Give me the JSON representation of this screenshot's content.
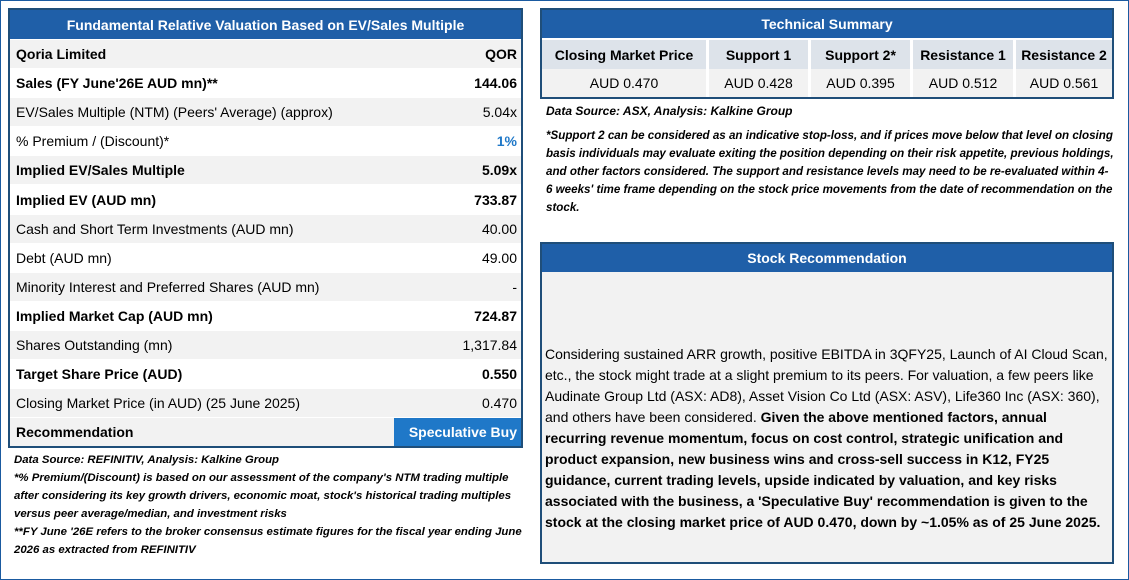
{
  "valuation": {
    "title": "Fundamental Relative Valuation Based on EV/Sales Multiple",
    "rows": [
      {
        "label": "Qoria Limited",
        "value": "QOR"
      },
      {
        "label": "Sales (FY June'26E AUD mn)**",
        "value": "144.06"
      },
      {
        "label": "EV/Sales Multiple (NTM)  (Peers' Average) (approx)",
        "value": "5.04x"
      },
      {
        "label": "% Premium / (Discount)*",
        "value": "1%"
      },
      {
        "label": "Implied EV/Sales Multiple",
        "value": "5.09x"
      },
      {
        "label": "Implied EV (AUD mn)",
        "value": "733.87"
      },
      {
        "label": "Cash and Short Term Investments (AUD mn)",
        "value": "40.00"
      },
      {
        "label": "Debt (AUD mn)",
        "value": "49.00"
      },
      {
        "label": "Minority Interest and Preferred Shares (AUD mn)",
        "value": "-"
      },
      {
        "label": "Implied Market Cap (AUD mn)",
        "value": "724.87"
      },
      {
        "label": "Shares Outstanding (mn)",
        "value": "1,317.84"
      },
      {
        "label": "Target Share Price (AUD)",
        "value": "0.550"
      },
      {
        "label": "Closing Market Price (in AUD) (25 June 2025)",
        "value": "0.470"
      },
      {
        "label": "Recommendation",
        "value": "Speculative Buy"
      }
    ],
    "colors": {
      "header": "#1f5fa8",
      "accent": "#1f78c8"
    }
  },
  "left_notes": {
    "source": "Data Source: REFINITIV, Analysis: Kalkine Group",
    "premium_note": "*% Premium/(Discount) is based on our assessment of the company's NTM trading multiple after considering its key growth drivers, economic moat, stock's historical trading multiples versus peer average/median, and investment risks",
    "fy_note": "**FY June '26E refers to the broker consensus estimate figures for the fiscal year ending June 2026  as extracted from REFINITIV"
  },
  "technical": {
    "title": "Technical Summary",
    "headers": [
      "Closing Market Price",
      "Support 1",
      "Support 2*",
      "Resistance 1",
      "Resistance 2"
    ],
    "values": [
      "AUD 0.470",
      "AUD 0.428",
      "AUD 0.395",
      "AUD 0.512",
      "AUD 0.561"
    ],
    "source": "Data Source: ASX, Analysis: Kalkine Group",
    "note": "*Support 2 can be considered as an indicative stop-loss, and if prices move below that level on closing basis individuals may evaluate exiting the position depending on their risk appetite, previous holdings, and other factors considered. The support and resistance levels may need to be re-evaluated within 4-6 weeks' time frame depending on the stock price movements from the date of recommendation on the stock."
  },
  "recommendation": {
    "title": "Stock Recommendation",
    "text_normal": "Considering sustained ARR growth, positive EBITDA in 3QFY25, Launch of AI Cloud Scan, etc., the stock might trade at a slight premium to its peers. For valuation, a few peers like Audinate Group Ltd (ASX: AD8), Asset Vision Co Ltd (ASX: ASV), Life360 Inc (ASX: 360), and others have been considered. ",
    "text_bold": "Given the above mentioned factors, annual recurring revenue momentum, focus on cost control, strategic unification and product expansion, new business wins and cross-sell success in K12, FY25 guidance, current trading levels, upside indicated by valuation, and key risks associated with the business, a 'Speculative Buy' recommendation is given to the stock at the closing market price of AUD 0.470, down by ~1.05% as of 25 June 2025."
  }
}
